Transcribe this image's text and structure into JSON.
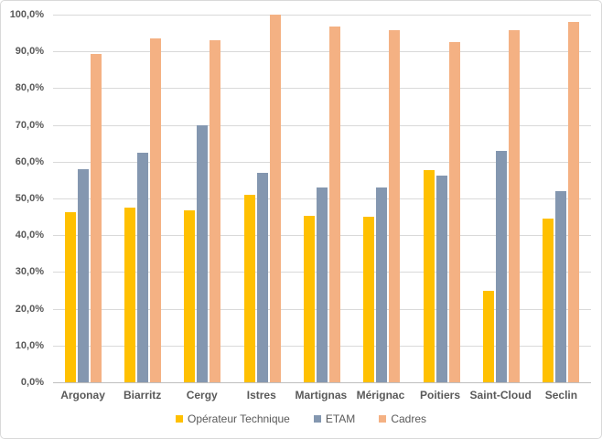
{
  "chart_data": {
    "type": "bar",
    "title": "",
    "categories": [
      "Argonay",
      "Biarritz",
      "Cergy",
      "Istres",
      "Martignas",
      "Mérignac",
      "Poitiers",
      "Saint-Cloud",
      "Seclin"
    ],
    "series": [
      {
        "name": "Opérateur Technique",
        "color": "#FFC000",
        "values": [
          46.2,
          47.6,
          46.8,
          51.0,
          45.4,
          45.1,
          57.7,
          25.0,
          44.5
        ]
      },
      {
        "name": "ETAM",
        "color": "#8497B0",
        "values": [
          58.0,
          62.5,
          70.0,
          57.0,
          53.0,
          53.0,
          56.3,
          63.0,
          52.0
        ]
      },
      {
        "name": "Cadres",
        "color": "#F4B183",
        "values": [
          89.3,
          93.5,
          93.0,
          100.0,
          96.7,
          95.8,
          92.5,
          95.8,
          98.0
        ]
      }
    ],
    "y_axis": {
      "min": 0,
      "max": 100,
      "step": 10,
      "unit": "%",
      "number_format": "french-decimal-comma",
      "tick_labels": [
        "100,0%",
        "90,0%",
        "80,0%",
        "70,0%",
        "60,0%",
        "50,0%",
        "40,0%",
        "30,0%",
        "20,0%",
        "10,0%",
        "0,0%"
      ]
    },
    "grid": true,
    "legend_position": "bottom"
  },
  "colors": {
    "gridline": "#D9D9D9",
    "axis_line": "#BFBFBF",
    "text": "#595959",
    "frame_border": "#D9D9D9",
    "background": "#FFFFFF"
  }
}
